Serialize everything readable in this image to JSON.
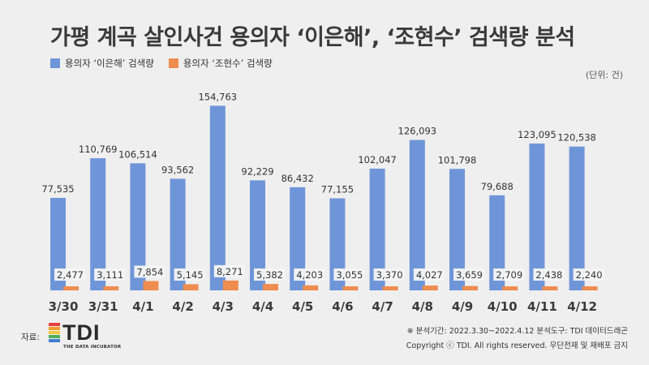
{
  "title": "가평 계곡 살인사건 용의자 ‘이은해’, ‘조현수’ 검색량 분석",
  "unit_label": "(단위: 건)",
  "colors": {
    "blue": "#6f95d9",
    "orange": "#ef8c4f",
    "label_bg": "#f4f4f4"
  },
  "chart_data": {
    "type": "bar",
    "title": "가평 계곡 살인사건 용의자 ‘이은해’, ‘조현수’ 검색량 분석",
    "categories": [
      "3/30",
      "3/31",
      "4/1",
      "4/2",
      "4/3",
      "4/4",
      "4/5",
      "4/6",
      "4/7",
      "4/8",
      "4/9",
      "4/10",
      "4/11",
      "4/12"
    ],
    "series": [
      {
        "name": "용의자 ‘이은해’ 검색량",
        "color": "#6f95d9",
        "values": [
          77535,
          110769,
          106514,
          93562,
          154763,
          92229,
          86432,
          77155,
          102047,
          126093,
          101798,
          79688,
          123095,
          120538
        ],
        "labels": [
          "77,535",
          "110,769",
          "106,514",
          "93,562",
          "154,763",
          "92,229",
          "86,432",
          "77,155",
          "102,047",
          "126,093",
          "101,798",
          "79,688",
          "123,095",
          "120,538"
        ]
      },
      {
        "name": "용의자 ‘조현수’ 검색량",
        "color": "#ef8c4f",
        "values": [
          2477,
          3111,
          7854,
          5145,
          8271,
          5382,
          4203,
          3055,
          3370,
          4027,
          3659,
          2709,
          2438,
          2240
        ],
        "labels": [
          "2,477",
          "3,111",
          "7,854",
          "5,145",
          "8,271",
          "5,382",
          "4,203",
          "3,055",
          "3,370",
          "4,027",
          "3,659",
          "2,709",
          "2,438",
          "2,240"
        ]
      }
    ],
    "ylim": [
      0,
      160000
    ],
    "grid": false,
    "legend": "top-left"
  },
  "footer": {
    "source_label": "자료:",
    "logo_text": "TDI",
    "logo_sub": "THE DATA INCUBATOR",
    "period": "※ 분석기간: 2022.3.30~2022.4.12   분석도구: TDI 데이터드래곤",
    "copyright": "Copyright ⓒ TDI. All rights reserved. 무단전재 및 재배포 금지"
  }
}
